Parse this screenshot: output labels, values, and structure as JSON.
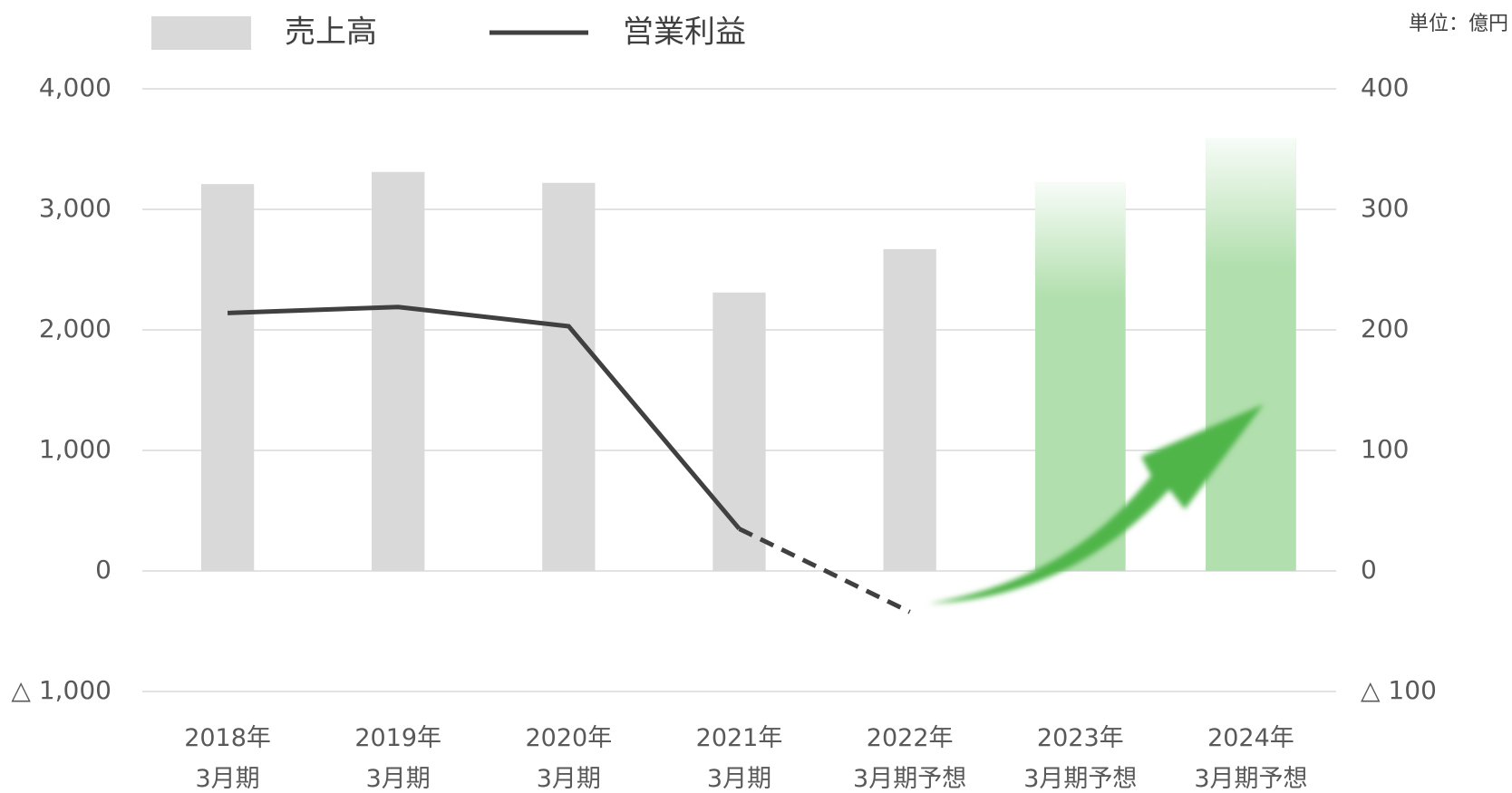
{
  "chart_data": {
    "type": "bar_line",
    "unit": "単位：億円",
    "categories": [
      "2018年\n3月期",
      "2019年\n3月期",
      "2020年\n3月期",
      "2021年\n3月期",
      "2022年\n3月期予想",
      "2023年\n3月期予想",
      "2024年\n3月期予想"
    ],
    "series": [
      {
        "name": "売上高",
        "type": "bar",
        "color": "#d9d9d9",
        "forecast_color": "#b1dfad",
        "forecast_from": 5,
        "values": [
          3210,
          3310,
          3220,
          2310,
          2670,
          3220,
          3590
        ]
      },
      {
        "name": "営業利益",
        "type": "line",
        "axis": "y2",
        "color": "#404040",
        "dashed_from": 3,
        "values": [
          214,
          219,
          203,
          35,
          -34,
          null,
          null
        ]
      }
    ],
    "ylim": [
      -1000,
      4000
    ],
    "yticks": [
      {
        "value": -1000,
        "label": "△ 1,000"
      },
      0,
      {
        "value": 1000,
        "label": "1,000"
      },
      {
        "value": 2000,
        "label": "2,000"
      },
      {
        "value": 3000,
        "label": "3,000"
      },
      {
        "value": 4000,
        "label": "4,000"
      }
    ],
    "y2lim": [
      -100,
      400
    ],
    "y2ticks": [
      {
        "value": -100,
        "label": "△ 100"
      },
      0,
      100,
      200,
      300,
      400
    ],
    "grid": true
  }
}
